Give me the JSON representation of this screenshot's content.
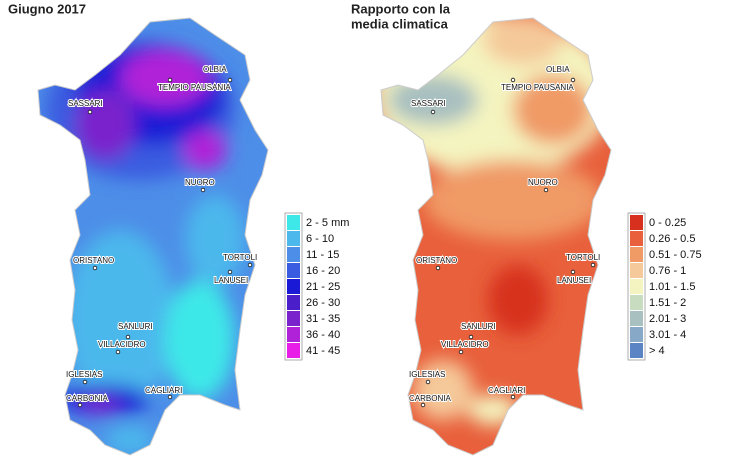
{
  "maps": [
    {
      "title_lines": [
        "Giugno 2017"
      ],
      "legend": [
        {
          "label": "2 - 5 mm",
          "color": "#3ee8e8"
        },
        {
          "label": "6 - 10",
          "color": "#4cb8ec"
        },
        {
          "label": "11 - 15",
          "color": "#4d8ee8"
        },
        {
          "label": "16 - 20",
          "color": "#3a5ce0"
        },
        {
          "label": "21 - 25",
          "color": "#1a1ad6"
        },
        {
          "label": "26 - 30",
          "color": "#4a1ec8"
        },
        {
          "label": "31 - 35",
          "color": "#7a22cc"
        },
        {
          "label": "36 - 40",
          "color": "#b022d8"
        },
        {
          "label": "41 - 45",
          "color": "#e81ee8"
        }
      ],
      "cities": [
        "OLBIA",
        "TEMPIO PAUSANIA",
        "SASSARI",
        "NUORO",
        "ORISTANO",
        "TORTOLI",
        "LANUSEI",
        "SANLURI",
        "VILLACIDRO",
        "IGLESIAS",
        "CAGLIARI",
        "CARBONIA"
      ]
    },
    {
      "title_lines": [
        "Rapporto con la",
        "media climatica"
      ],
      "legend": [
        {
          "label": "0 - 0.25",
          "color": "#d7301f"
        },
        {
          "label": "0.26 - 0.5",
          "color": "#e8603c"
        },
        {
          "label": "0.51 - 0.75",
          "color": "#f09a66"
        },
        {
          "label": "0.76 - 1",
          "color": "#f5c99a"
        },
        {
          "label": "1.01 - 1.5",
          "color": "#f4f4c0"
        },
        {
          "label": "1.51 - 2",
          "color": "#c8dcc0"
        },
        {
          "label": "2.01 - 3",
          "color": "#a8c0c0"
        },
        {
          "label": "3.01 - 4",
          "color": "#88a8c8"
        },
        {
          "label": "> 4",
          "color": "#5a84c4"
        }
      ],
      "cities": [
        "OLBIA",
        "TEMPIO PAUSANIA",
        "SASSARI",
        "NUORO",
        "ORISTANO",
        "TORTOLI",
        "LANUSEI",
        "SANLURI",
        "VILLACIDRO",
        "IGLESIAS",
        "CAGLIARI",
        "CARBONIA"
      ]
    }
  ]
}
